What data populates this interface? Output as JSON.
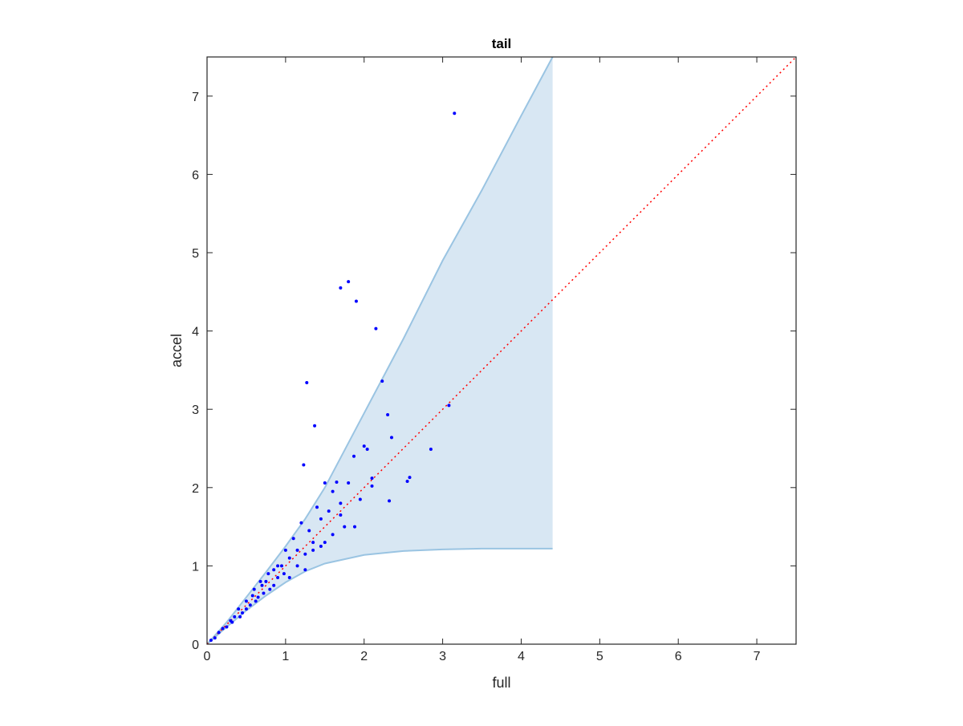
{
  "chart_data": {
    "type": "scatter",
    "title": "tail",
    "x_label": "full",
    "y_label": "accel",
    "xlim": [
      0,
      7.5
    ],
    "ylim": [
      0,
      7.5
    ],
    "xticks": [
      0,
      1,
      2,
      3,
      4,
      5,
      6,
      7
    ],
    "yticks": [
      0,
      1,
      2,
      3,
      4,
      5,
      6,
      7
    ],
    "grid": false,
    "series": [
      {
        "type": "band",
        "color": "#9ac4e2",
        "fill": "#d8e7f3",
        "x": [
          0,
          0.25,
          0.5,
          0.75,
          1.0,
          1.25,
          1.5,
          2,
          2.5,
          3,
          3.5,
          4,
          4.4
        ],
        "upper": [
          0,
          0.28,
          0.6,
          0.92,
          1.25,
          1.6,
          2.0,
          2.95,
          3.9,
          4.9,
          5.8,
          6.75,
          7.5
        ],
        "lower": [
          0,
          0.22,
          0.43,
          0.62,
          0.79,
          0.93,
          1.03,
          1.14,
          1.19,
          1.21,
          1.22,
          1.22,
          1.22
        ]
      },
      {
        "type": "line",
        "color": "#ff0000",
        "style": "dotted",
        "x": [
          0,
          7.5
        ],
        "values": [
          0,
          7.5
        ]
      },
      {
        "type": "scatter",
        "color": "#0000ff",
        "x": [
          3.15,
          1.7,
          1.8,
          1.9,
          2.15,
          1.27,
          2.23,
          1.37,
          3.08,
          2.3,
          2.35,
          2.0,
          2.04,
          2.85,
          2.58,
          2.55,
          2.32,
          1.23,
          1.87,
          1.5,
          1.65,
          1.8,
          2.1,
          2.1,
          1.95,
          1.88,
          1.6,
          1.55,
          1.45,
          1.4,
          1.3,
          1.2,
          1.1,
          1.0,
          0.95,
          0.9,
          0.85,
          0.8,
          0.75,
          0.7,
          0.65,
          0.6,
          0.55,
          0.5,
          0.45,
          0.4,
          0.35,
          0.3,
          0.25,
          0.2,
          0.15,
          0.1,
          0.05,
          1.15,
          1.25,
          1.35,
          1.05,
          0.98,
          0.9,
          0.85,
          0.72,
          0.62,
          0.5,
          1.7,
          1.75,
          1.45,
          1.35,
          1.6,
          1.25,
          1.05,
          0.78,
          0.68,
          1.7,
          1.5,
          1.15,
          0.42,
          0.32,
          0.58
        ],
        "values": [
          6.78,
          4.55,
          4.63,
          4.38,
          4.03,
          3.34,
          3.36,
          2.79,
          3.05,
          2.93,
          2.64,
          2.53,
          2.49,
          2.49,
          2.13,
          2.08,
          1.83,
          2.29,
          2.4,
          2.06,
          2.07,
          2.06,
          2.12,
          2.02,
          1.85,
          1.5,
          1.95,
          1.7,
          1.6,
          1.75,
          1.45,
          1.55,
          1.35,
          1.2,
          1.0,
          0.85,
          0.95,
          0.7,
          0.8,
          0.75,
          0.6,
          0.7,
          0.5,
          0.55,
          0.4,
          0.45,
          0.35,
          0.3,
          0.22,
          0.2,
          0.15,
          0.08,
          0.05,
          1.0,
          1.15,
          1.3,
          0.85,
          0.9,
          1.0,
          0.75,
          0.65,
          0.55,
          0.45,
          1.65,
          1.5,
          1.25,
          1.2,
          1.4,
          0.95,
          1.1,
          0.9,
          0.8,
          1.8,
          1.3,
          1.2,
          0.35,
          0.28,
          0.62
        ]
      }
    ]
  }
}
